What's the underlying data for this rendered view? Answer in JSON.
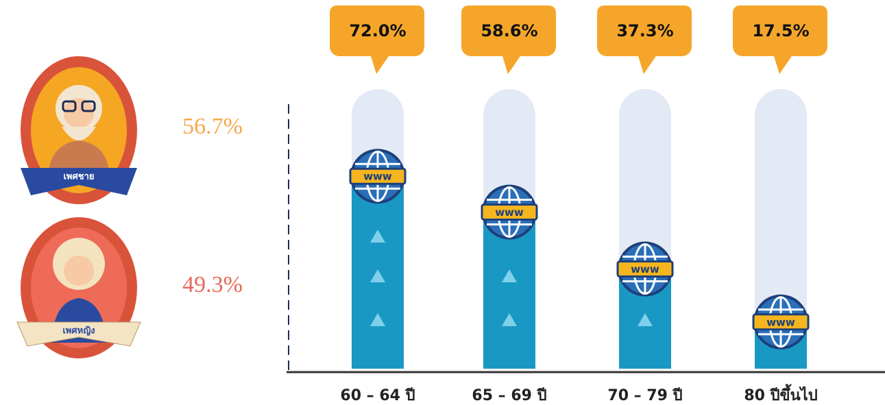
{
  "gender": [
    {
      "label": "เพศชาย",
      "percent": "56.7%"
    },
    {
      "label": "เพศหญิง",
      "percent": "49.3%"
    }
  ],
  "chart_data": {
    "type": "bar",
    "categories": [
      "60 – 64 ปี",
      "65 – 69 ปี",
      "70 – 79 ปี",
      "80 ปีขึ้นไป"
    ],
    "values": [
      72.0,
      58.6,
      37.3,
      17.5
    ],
    "value_labels": [
      "72.0%",
      "58.6%",
      "37.3%",
      "17.5%"
    ],
    "color": "#1a98c4",
    "ylim": [
      0,
      100
    ]
  }
}
